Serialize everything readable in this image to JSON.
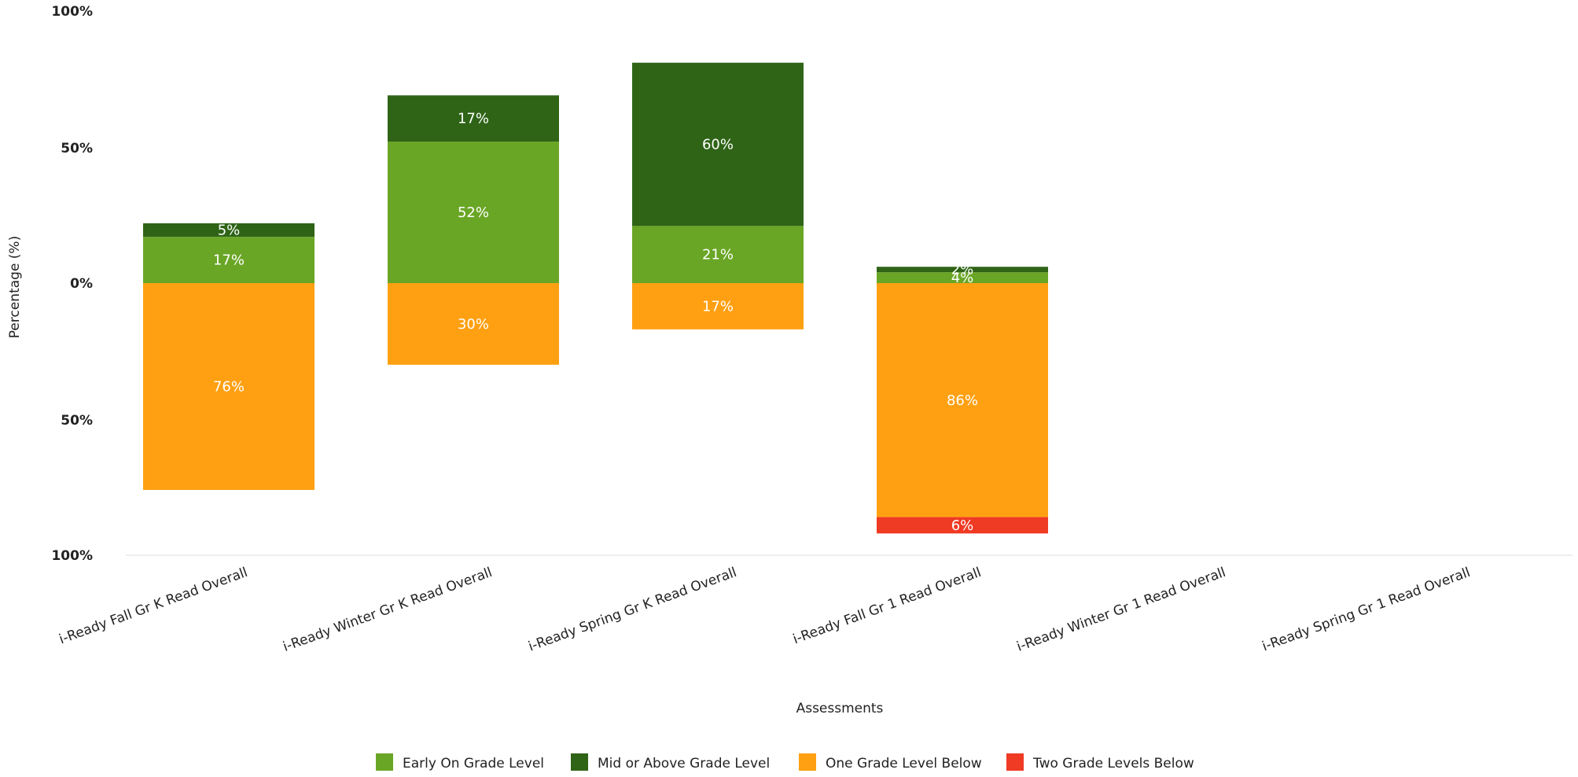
{
  "chart_data": {
    "type": "bar",
    "stacking": "diverging",
    "categories": [
      "i-Ready Fall Gr K Read Overall",
      "i-Ready Winter Gr K Read Overall",
      "i-Ready Spring Gr K Read Overall",
      "i-Ready Fall Gr 1 Read Overall",
      "i-Ready Winter Gr 1 Read Overall",
      "i-Ready Spring Gr 1 Read Overall"
    ],
    "series": [
      {
        "name": "Early On Grade Level",
        "direction": "up",
        "color": "#6aa625",
        "values": [
          17,
          52,
          21,
          4,
          null,
          null
        ],
        "labels": [
          "17%",
          "52%",
          "21%",
          "4%",
          "",
          ""
        ]
      },
      {
        "name": "Mid or Above Grade Level",
        "direction": "up",
        "color": "#2f6417",
        "values": [
          5,
          17,
          60,
          2,
          null,
          null
        ],
        "labels": [
          "5%",
          "17%",
          "60%",
          "2%",
          "",
          ""
        ]
      },
      {
        "name": "One Grade Level Below",
        "direction": "down",
        "color": "#ffa012",
        "values": [
          76,
          30,
          17,
          86,
          null,
          null
        ],
        "labels": [
          "76%",
          "30%",
          "17%",
          "86%",
          "",
          ""
        ]
      },
      {
        "name": "Two Grade Levels Below",
        "direction": "down",
        "color": "#ef3a24",
        "values": [
          null,
          null,
          null,
          6,
          null,
          null
        ],
        "labels": [
          "",
          "",
          "",
          "6%",
          "",
          ""
        ]
      }
    ],
    "y_ticks": [
      "100%",
      "50%",
      "0%",
      "50%",
      "100%"
    ],
    "ylim": [
      -100,
      100
    ],
    "xlabel": "Assessments",
    "ylabel": "Percentage (%)",
    "legend": "bottom",
    "grid": false
  }
}
